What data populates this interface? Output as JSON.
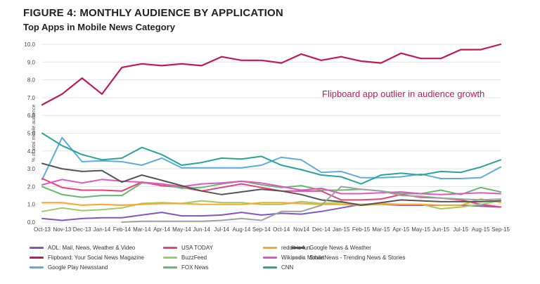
{
  "title": "FIGURE 4: MONTHLY AUDIENCE BY APPLICATION",
  "subtitle": "Top Apps in Mobile News Category",
  "annotation": "Flipboard app outlier in audience growth",
  "chart_data": {
    "type": "line",
    "ylabel": "% of total mobile audience",
    "ylim": [
      0,
      10
    ],
    "yticks": [
      "0.0",
      "1.0",
      "2.0",
      "3.0",
      "4.0",
      "5.0",
      "6.0",
      "7.0",
      "8.0",
      "9.0",
      "10.0"
    ],
    "categories": [
      "Oct-13",
      "Nov-13",
      "Dec-13",
      "Jan-14",
      "Feb-14",
      "Mar-14",
      "Apr-14",
      "May-14",
      "Jun-14",
      "Jul-14",
      "Aug-14",
      "Sep-14",
      "Oct-14",
      "Nov-14",
      "Dec-14",
      "Jan-15",
      "Feb-15",
      "Mar-15",
      "Apr-15",
      "May-15",
      "Jun-15",
      "Jul-15",
      "Aug-15",
      "Sep-15"
    ],
    "xtick_labels": [
      "Oct-13",
      "Nov-13",
      "Dec-13",
      "Jan-14",
      "Feb-14",
      "Mar-14",
      "Apr-14",
      "May-14",
      "Jun-14",
      "Jul-14",
      "Aug-14",
      "Sep-14",
      "Oct-14",
      "Nov14",
      "Dec-14",
      "Jan-15",
      "Feb-15",
      "Mar-15",
      "Apr-15",
      "May-15",
      "Jun-15",
      "Jul-15",
      "Aug-15",
      "Sep-15"
    ],
    "grid": true,
    "series": [
      {
        "name": "AOL: Mail, News, Weather & Video",
        "color": "#7e57c2",
        "values": [
          0.2,
          0.1,
          0.2,
          0.25,
          0.25,
          0.4,
          0.55,
          0.35,
          0.35,
          0.4,
          0.55,
          0.4,
          0.5,
          0.45,
          0.6,
          0.8,
          1.0,
          1.0,
          0.95,
          0.95,
          0.95,
          0.95,
          0.9,
          0.85
        ]
      },
      {
        "name": "Flipboard: Your Social News Magazine",
        "color": "#c2185b",
        "values": [
          6.6,
          7.2,
          8.1,
          7.2,
          8.7,
          8.9,
          8.8,
          8.9,
          8.8,
          9.3,
          9.1,
          9.1,
          8.95,
          9.45,
          9.1,
          9.3,
          9.05,
          8.95,
          9.5,
          9.2,
          9.2,
          9.7,
          9.7,
          10.0
        ]
      },
      {
        "name": "Google Play Newsstand",
        "color": "#5dade2",
        "values": [
          2.4,
          4.75,
          3.4,
          3.45,
          3.4,
          3.2,
          3.6,
          3.05,
          3.05,
          3.05,
          3.05,
          3.2,
          3.65,
          3.5,
          2.8,
          2.85,
          2.5,
          2.5,
          2.55,
          2.7,
          2.45,
          2.45,
          2.5,
          3.1
        ]
      },
      {
        "name": "USA TODAY",
        "color": "#ec407a",
        "values": [
          2.45,
          1.95,
          1.8,
          1.8,
          1.75,
          2.25,
          2.05,
          1.95,
          1.75,
          1.95,
          2.15,
          1.95,
          1.75,
          1.75,
          1.75,
          1.25,
          1.25,
          1.3,
          1.55,
          1.4,
          1.35,
          1.25,
          1.0,
          0.85
        ]
      },
      {
        "name": "BuzzFeed",
        "color": "#9ccc65",
        "values": [
          0.6,
          0.8,
          0.65,
          0.7,
          0.8,
          1.05,
          1.1,
          1.05,
          1.2,
          1.1,
          1.1,
          1.0,
          1.0,
          1.15,
          1.05,
          1.1,
          1.0,
          1.05,
          1.0,
          1.0,
          0.75,
          0.85,
          1.0,
          1.2
        ]
      },
      {
        "name": "FOX News",
        "color": "#66bb6a",
        "values": [
          2.0,
          1.55,
          1.4,
          1.5,
          1.5,
          2.2,
          2.15,
          1.9,
          1.95,
          2.15,
          2.3,
          2.1,
          1.95,
          2.05,
          1.8,
          1.8,
          1.85,
          1.75,
          1.6,
          1.6,
          1.8,
          1.55,
          1.95,
          1.7
        ]
      },
      {
        "name": "reddit is fun",
        "color": "#ffa726",
        "values": [
          1.1,
          1.1,
          0.95,
          1.0,
          0.95,
          1.0,
          1.05,
          1.05,
          1.0,
          1.0,
          1.0,
          1.1,
          1.1,
          1.05,
          1.0,
          1.0,
          0.95,
          1.0,
          1.0,
          1.0,
          0.95,
          0.95,
          1.3,
          1.1
        ]
      },
      {
        "name": "Wikipedia Mobile",
        "color": "#e056c8",
        "values": [
          2.1,
          2.4,
          2.2,
          2.4,
          2.3,
          2.25,
          2.15,
          2.0,
          2.15,
          2.2,
          2.3,
          2.2,
          2.0,
          1.8,
          1.9,
          1.6,
          1.6,
          1.65,
          1.7,
          1.6,
          1.55,
          1.6,
          1.65,
          1.6
        ]
      },
      {
        "name": "CNN",
        "color": "#26a69a",
        "values": [
          5.0,
          4.3,
          3.8,
          3.5,
          3.6,
          4.2,
          3.8,
          3.2,
          3.35,
          3.6,
          3.55,
          3.7,
          3.2,
          2.95,
          2.65,
          2.55,
          2.15,
          2.65,
          2.75,
          2.65,
          2.85,
          2.8,
          3.1,
          3.5
        ]
      },
      {
        "name": "Google News & Weather",
        "color": "#555555",
        "values": [
          3.3,
          3.0,
          2.85,
          2.9,
          2.25,
          2.65,
          2.35,
          2.05,
          1.75,
          1.55,
          1.7,
          1.85,
          1.75,
          1.55,
          1.25,
          1.15,
          0.95,
          1.1,
          1.25,
          1.2,
          1.15,
          1.15,
          1.15,
          1.2
        ]
      },
      {
        "name": "SmartNews - Trending News & Stories",
        "color": "#a0a0a0",
        "values": [
          null,
          null,
          null,
          null,
          0.0,
          0.05,
          0.05,
          0.05,
          0.05,
          0.1,
          0.2,
          0.1,
          0.6,
          0.6,
          0.95,
          2.0,
          1.85,
          1.75,
          1.5,
          1.45,
          1.35,
          1.3,
          1.25,
          1.3
        ]
      }
    ]
  }
}
